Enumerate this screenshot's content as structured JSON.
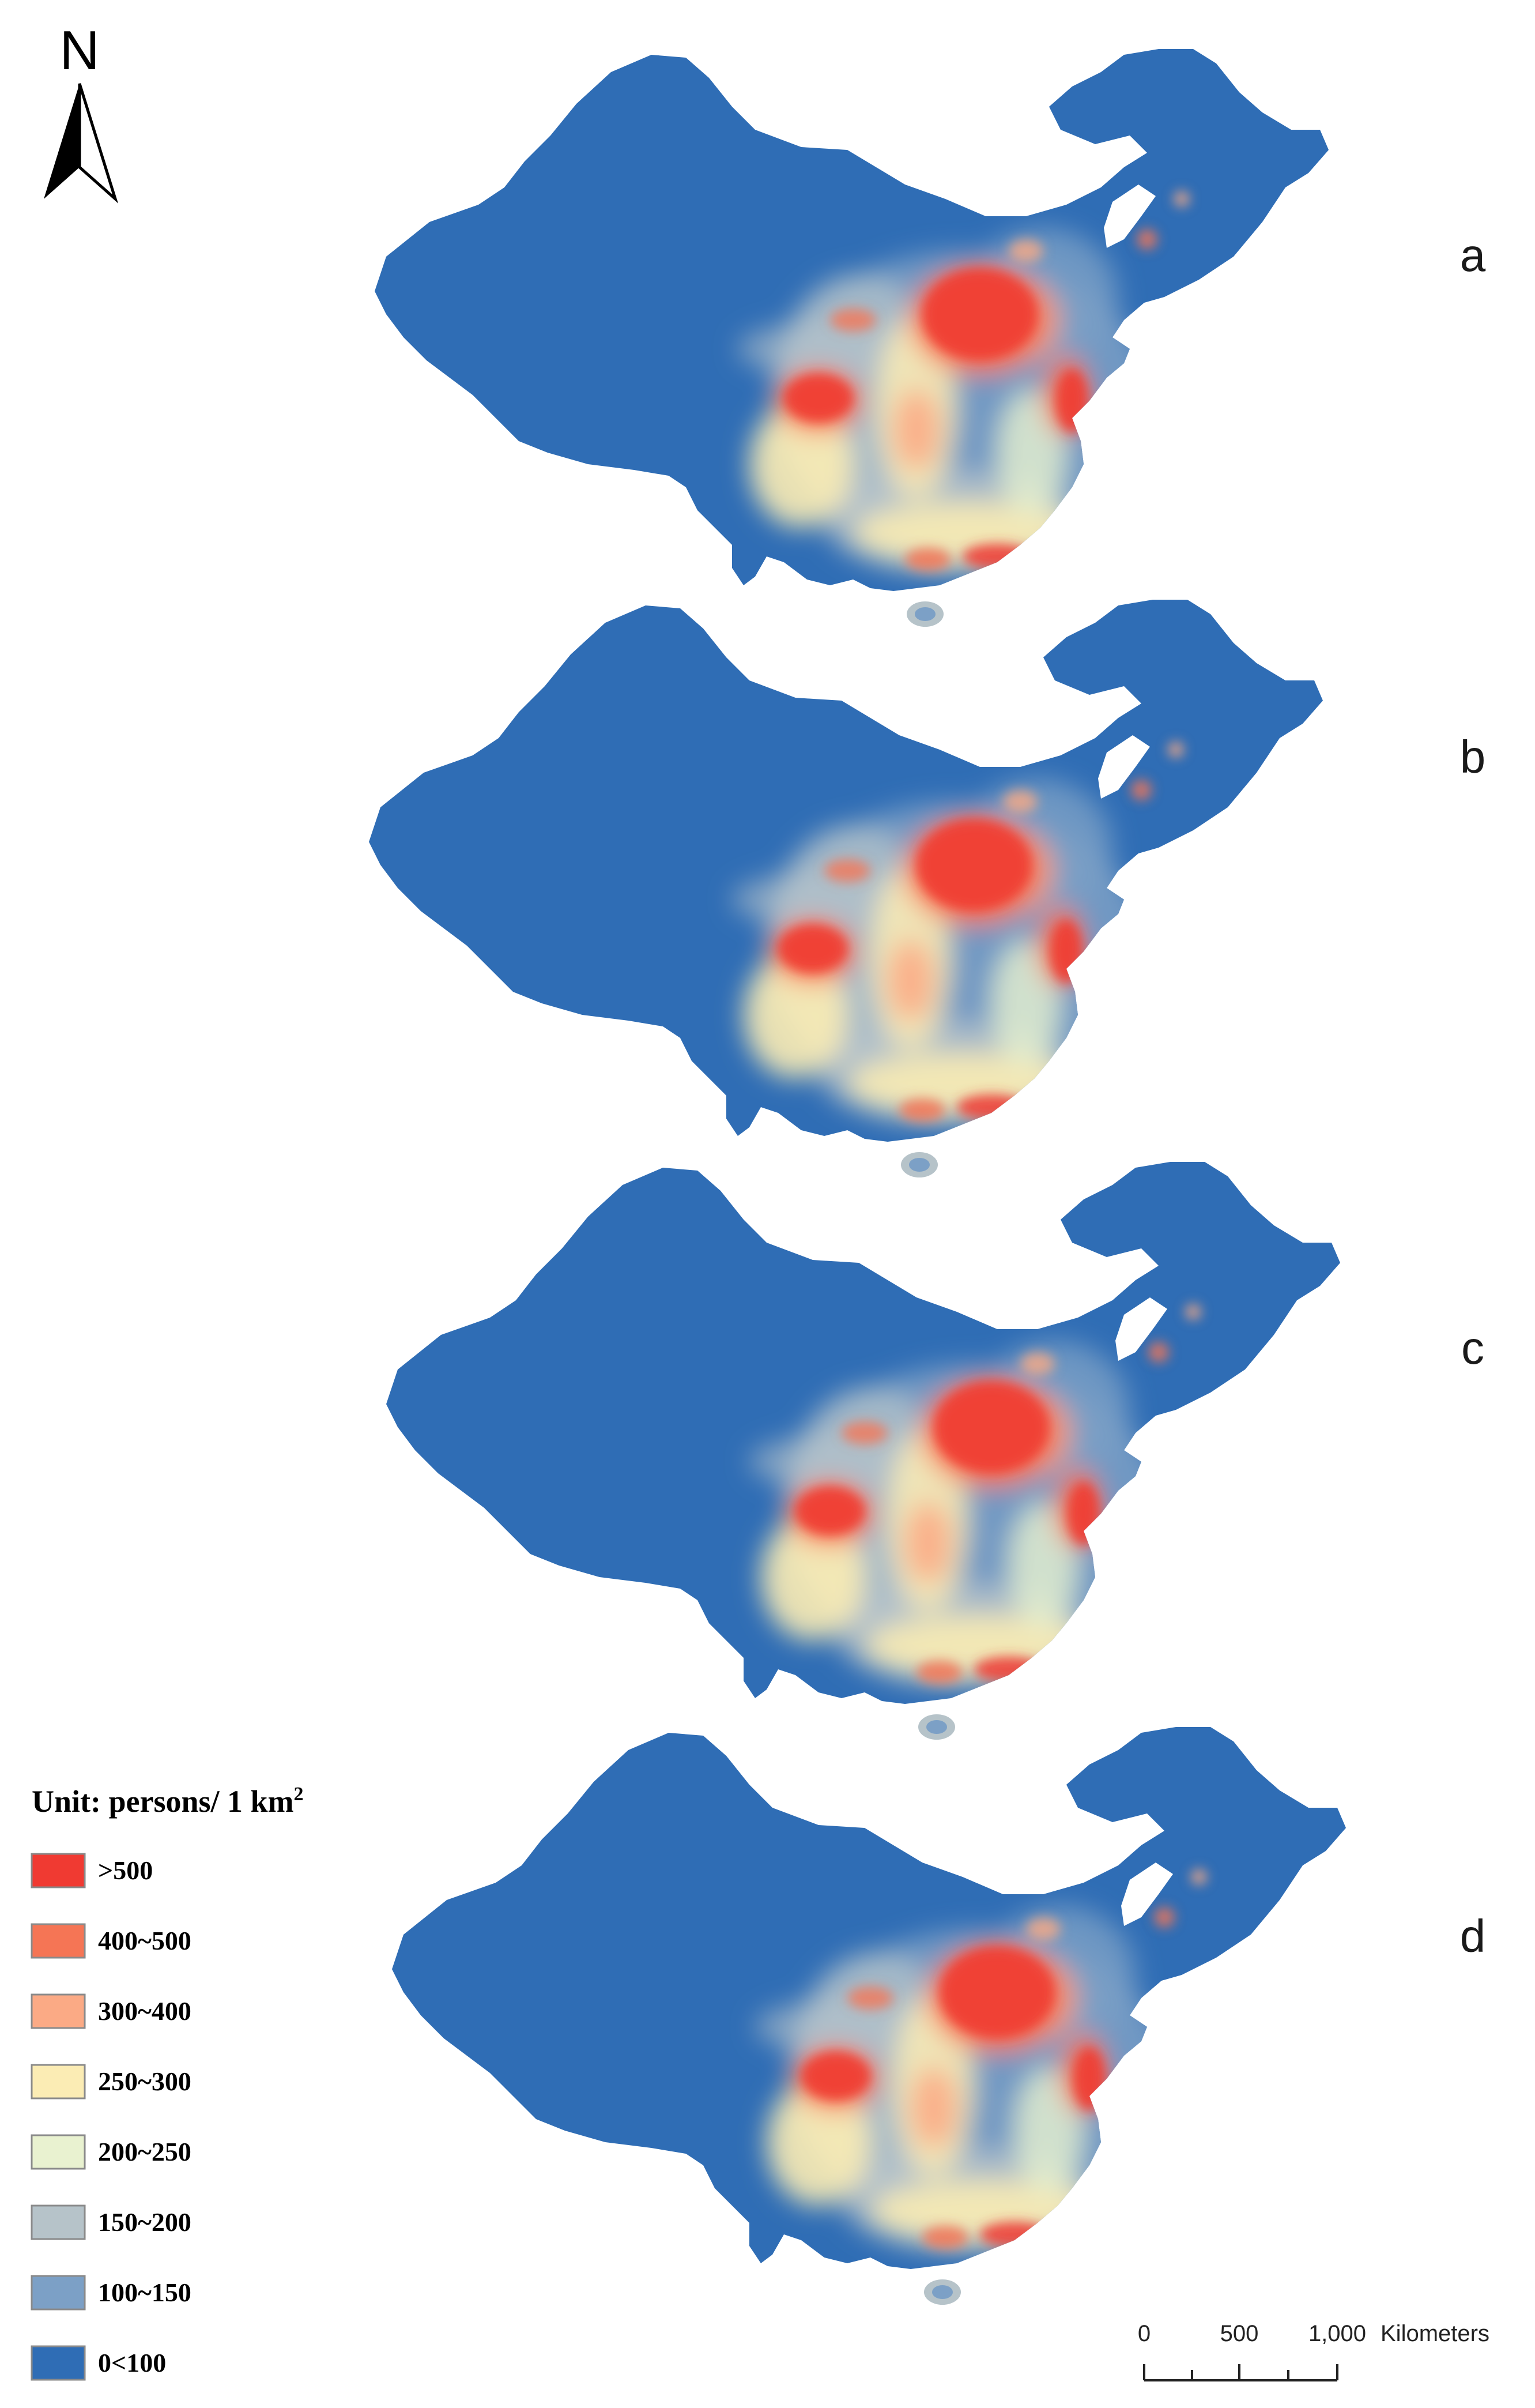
{
  "north_arrow": {
    "label": "N"
  },
  "panels": [
    {
      "letter": "a"
    },
    {
      "letter": "b"
    },
    {
      "letter": "c"
    },
    {
      "letter": "d"
    }
  ],
  "legend": {
    "title": "Unit: persons/ 1 km",
    "title_superscript": "2",
    "classes": [
      {
        "label": ">500",
        "color": "#f03a32"
      },
      {
        "label": "400~500",
        "color": "#f57555"
      },
      {
        "label": "300~400",
        "color": "#fbaa85"
      },
      {
        "label": "250~300",
        "color": "#fbecb4"
      },
      {
        "label": "200~250",
        "color": "#e9f2d0"
      },
      {
        "label": "150~200",
        "color": "#b6c3c9"
      },
      {
        "label": "100~150",
        "color": "#7ca0c6"
      },
      {
        "label": "0<100",
        "color": "#2f6db5"
      }
    ]
  },
  "scale_bar": {
    "ticks": [
      "0",
      "500",
      "1,000"
    ],
    "unit": "Kilometers"
  }
}
